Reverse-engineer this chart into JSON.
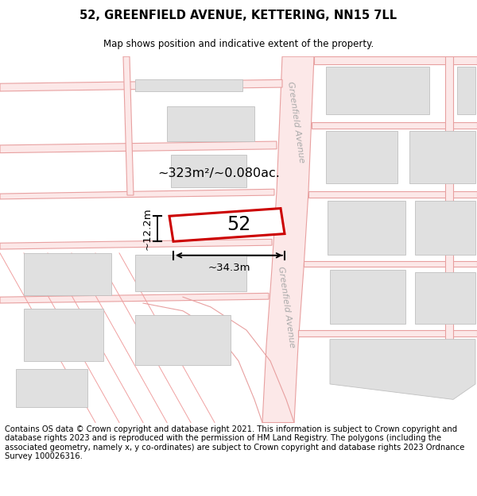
{
  "title": "52, GREENFIELD AVENUE, KETTERING, NN15 7LL",
  "subtitle": "Map shows position and indicative extent of the property.",
  "footer": "Contains OS data © Crown copyright and database right 2021. This information is subject to Crown copyright and database rights 2023 and is reproduced with the permission of HM Land Registry. The polygons (including the associated geometry, namely x, y co-ordinates) are subject to Crown copyright and database rights 2023 Ordnance Survey 100026316.",
  "map_bg": "#ffffff",
  "road_fill": "#fce8e8",
  "road_edge": "#e8a0a0",
  "plot_line": "#f0a0a0",
  "building_fill": "#e0e0e0",
  "building_edge": "#c0c0c0",
  "prop_fill": "#ffffff",
  "prop_edge": "#dd0000",
  "street_label_color": "#aaaaaa",
  "area_text": "~323m²/~0.080ac.",
  "property_number": "52",
  "dim_width": "~34.3m",
  "dim_height": "~12.2m",
  "street_label": "Greenfield Avenue",
  "title_fontsize": 10.5,
  "subtitle_fontsize": 8.5,
  "footer_fontsize": 7.2
}
